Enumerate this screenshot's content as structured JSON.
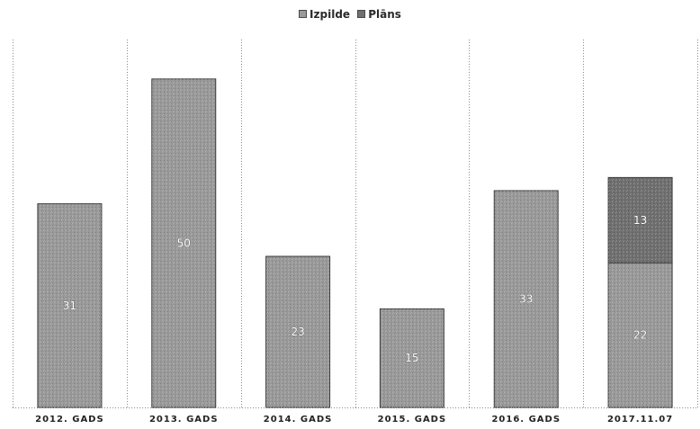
{
  "chart_data": {
    "type": "bar",
    "stacked": true,
    "title": "",
    "xlabel": "",
    "ylabel": "",
    "ylim": [
      0,
      56
    ],
    "grid": "vertical-dotted",
    "legend": "top-center",
    "categories": [
      "2012. GADS",
      "2013. GADS",
      "2014. GADS",
      "2015. GADS",
      "2016. GADS",
      "2017.11.07"
    ],
    "series": [
      {
        "name": "Izpilde",
        "color": "#9a9a9a",
        "values": [
          31,
          50,
          23,
          15,
          33,
          22
        ]
      },
      {
        "name": "Plāns",
        "color": "#707070",
        "values": [
          0,
          0,
          0,
          0,
          0,
          13
        ]
      }
    ]
  }
}
